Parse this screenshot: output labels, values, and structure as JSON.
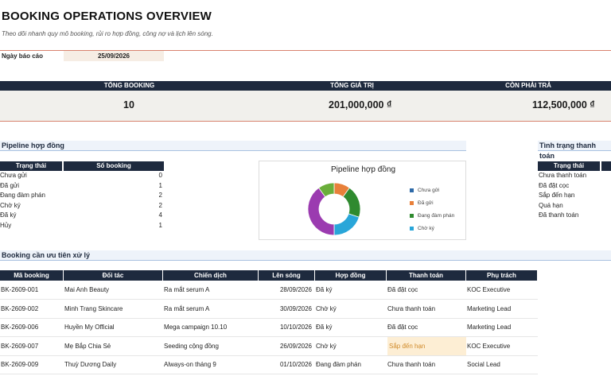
{
  "header": {
    "title": "BOOKING OPERATIONS OVERVIEW",
    "subtitle": "Theo dõi nhanh quy mô booking, rủi ro hợp đồng, công nợ và lịch lên sóng.",
    "report_date_label": "Ngày báo cáo",
    "report_date_value": "25/09/2026"
  },
  "kpis": [
    {
      "label": "TỔNG BOOKING",
      "value": "10"
    },
    {
      "label": "TỔNG GIÁ TRỊ",
      "value": "201,000,000 ₫"
    },
    {
      "label": "CÒN PHẢI TRẢ",
      "value": "112,500,000 ₫"
    }
  ],
  "pipeline": {
    "section_title": "Pipeline hợp đồng",
    "columns": [
      "Trạng thái",
      "Số booking"
    ],
    "rows": [
      {
        "status": "Chưa gửi",
        "count": "0"
      },
      {
        "status": "Đã gửi",
        "count": "1"
      },
      {
        "status": "Đang đàm phán",
        "count": "2"
      },
      {
        "status": "Chờ ký",
        "count": "2"
      },
      {
        "status": "Đã ký",
        "count": "4"
      },
      {
        "status": "Hủy",
        "count": "1"
      }
    ]
  },
  "chart_data": {
    "type": "pie",
    "title": "Pipeline hợp đồng",
    "legend_position": "right",
    "slices": [
      {
        "label": "Chưa gửi",
        "value": 0,
        "color": "#2e6aa8"
      },
      {
        "label": "Đã gửi",
        "value": 1,
        "color": "#e8803a"
      },
      {
        "label": "Đang đàm phán",
        "value": 2,
        "color": "#2f8a2f"
      },
      {
        "label": "Chờ ký",
        "value": 2,
        "color": "#29a6d9"
      },
      {
        "label": "Đã ký",
        "value": 4,
        "color": "#9b3bb0"
      },
      {
        "label": "Hủy",
        "value": 1,
        "color": "#6aae3a"
      }
    ],
    "legend_visible": [
      "Chưa gửi",
      "Đã gửi",
      "Đang đàm phán",
      "Chờ ký"
    ]
  },
  "payment": {
    "section_title": "Tình trạng thanh toán",
    "column": "Trạng thái",
    "rows": [
      "Chưa thanh toán",
      "Đã đặt cọc",
      "Sắp đến hạn",
      "Quá hạn",
      "Đã thanh toán"
    ]
  },
  "priority": {
    "section_title": "Booking cần ưu tiên xử lý",
    "columns": [
      "Mã booking",
      "Đối tác",
      "Chiến dịch",
      "Lên sóng",
      "Hợp đồng",
      "Thanh toán",
      "Phụ trách"
    ],
    "rows": [
      {
        "code": "BK-2609-001",
        "partner": "Mai Anh Beauty",
        "campaign": "Ra mắt serum A",
        "air": "28/09/2026",
        "contract": "Đã ký",
        "payment": "Đã đặt cọc",
        "owner": "KOC Executive",
        "highlight": false
      },
      {
        "code": "BK-2609-002",
        "partner": "Minh Trang Skincare",
        "campaign": "Ra mắt serum A",
        "air": "30/09/2026",
        "contract": "Chờ ký",
        "payment": "Chưa thanh toán",
        "owner": "Marketing Lead",
        "highlight": false
      },
      {
        "code": "BK-2609-006",
        "partner": "Huyền My Official",
        "campaign": "Mega campaign 10.10",
        "air": "10/10/2026",
        "contract": "Đã ký",
        "payment": "Đã đặt cọc",
        "owner": "Marketing Lead",
        "highlight": false
      },
      {
        "code": "BK-2609-007",
        "partner": "Mẹ Bắp Chia Sẻ",
        "campaign": "Seeding cộng đồng",
        "air": "26/09/2026",
        "contract": "Chờ ký",
        "payment": "Sắp đến hạn",
        "owner": "KOC Executive",
        "highlight": true
      },
      {
        "code": "BK-2609-009",
        "partner": "Thuỳ Dương Daily",
        "campaign": "Always-on tháng 9",
        "air": "01/10/2026",
        "contract": "Đang đàm phán",
        "payment": "Chưa thanh toán",
        "owner": "Social Lead",
        "highlight": false
      }
    ]
  }
}
